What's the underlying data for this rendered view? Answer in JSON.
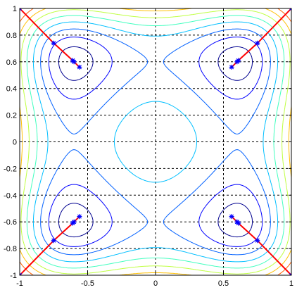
{
  "chart_data": {
    "type": "contour",
    "title": "",
    "xlabel": "",
    "ylabel": "",
    "xlim": [
      -1,
      1
    ],
    "ylim": [
      -1,
      1
    ],
    "grid": true,
    "grid_style": "dashed",
    "x_ticks": [
      -1,
      -0.5,
      0,
      0.5,
      1
    ],
    "x_tick_labels": [
      "-1",
      "-0.5",
      "0",
      "0.5",
      "1"
    ],
    "y_ticks": [
      1,
      0.8,
      0.6,
      0.4,
      0.2,
      0,
      -0.2,
      -0.4,
      -0.6,
      -0.8,
      -1
    ],
    "y_tick_labels": [
      "1",
      "0.8",
      "0.6",
      "0.4",
      "0.2",
      "0",
      "-0.2",
      "-0.4",
      "-0.6",
      "-0.8",
      "-1"
    ],
    "contour_levels": [
      {
        "level": 1,
        "color": "#00008f"
      },
      {
        "level": 2,
        "color": "#0000ff"
      },
      {
        "level": 3,
        "color": "#0060ff"
      },
      {
        "level": 4,
        "color": "#00bfff"
      },
      {
        "level": 5,
        "color": "#40ffbf"
      },
      {
        "level": 6,
        "color": "#bfff40"
      },
      {
        "level": 7,
        "color": "#ffbf00"
      },
      {
        "level": 8,
        "color": "#ff6000"
      }
    ],
    "paths": [
      {
        "name": "",
        "color": "#ff0000",
        "marker_color": "#0000ff",
        "points": [
          [
            -1,
            1
          ],
          [
            -0.75,
            0.74
          ],
          [
            -0.61,
            0.61
          ],
          [
            -0.6,
            0.6
          ],
          [
            -0.56,
            0.56
          ]
        ]
      },
      {
        "name": "",
        "color": "#ff0000",
        "marker_color": "#0000ff",
        "points": [
          [
            1,
            1
          ],
          [
            0.75,
            0.74
          ],
          [
            0.61,
            0.61
          ],
          [
            0.6,
            0.6
          ],
          [
            0.56,
            0.56
          ]
        ]
      },
      {
        "name": "",
        "color": "#ff0000",
        "marker_color": "#0000ff",
        "points": [
          [
            -1,
            -1
          ],
          [
            -0.75,
            -0.74
          ],
          [
            -0.61,
            -0.61
          ],
          [
            -0.6,
            -0.6
          ],
          [
            -0.56,
            -0.56
          ]
        ]
      },
      {
        "name": "",
        "color": "#ff0000",
        "marker_color": "#0000ff",
        "points": [
          [
            1,
            -1
          ],
          [
            0.75,
            -0.74
          ],
          [
            0.61,
            -0.61
          ],
          [
            0.6,
            -0.6
          ],
          [
            0.56,
            -0.56
          ]
        ]
      }
    ]
  }
}
